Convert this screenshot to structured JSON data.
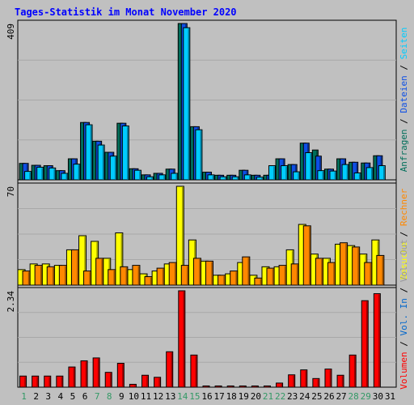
{
  "title": "Tages-Statistik im Monat November 2020",
  "colors": {
    "background": "#c0c0c0",
    "frame": "#000000",
    "title": "#0000ff",
    "label": "#000000",
    "weekend_label": "#339966",
    "anfragen": "#006e5a",
    "dateien": "#0d4fe6",
    "seiten": "#00ccff",
    "besuche": "#ffff00",
    "rechner": "#ff8800",
    "vol_in": "#0066cc",
    "vol_out": "#999999",
    "volumen": "#ff0000"
  },
  "legend_right": {
    "top": [
      "Anfragen",
      "Dateien",
      "Seiten"
    ],
    "middle": [
      "Besuche",
      "Rechner"
    ],
    "bottom": [
      "Volumen",
      "Vol. In",
      "Vol. Out"
    ],
    "separator": " / "
  },
  "chart_data": {
    "type": "bar",
    "title": "Tages-Statistik im Monat November 2020",
    "categories": [
      "1",
      "2",
      "3",
      "4",
      "5",
      "6",
      "7",
      "8",
      "9",
      "10",
      "11",
      "12",
      "13",
      "14",
      "15",
      "16",
      "17",
      "18",
      "19",
      "20",
      "21",
      "22",
      "23",
      "24",
      "25",
      "26",
      "27",
      "28",
      "29",
      "30",
      "31"
    ],
    "weekend_days": [
      "1",
      "7",
      "8",
      "14",
      "15",
      "21",
      "22",
      "28",
      "29"
    ],
    "panels": [
      {
        "name": "top",
        "ymax_label": "409",
        "ymax": 409,
        "series": [
          {
            "name": "Anfragen",
            "values": [
              43,
              38,
              37,
              24,
              55,
              150,
              101,
              72,
              148,
              29,
              13,
              17,
              28,
              409,
              139,
              20,
              12,
              12,
              25,
              12,
              12,
              55,
              40,
              96,
              78,
              28,
              55,
              46,
              44,
              63,
              0
            ]
          },
          {
            "name": "Dateien",
            "values": [
              43,
              38,
              37,
              24,
              55,
              150,
              101,
              72,
              148,
              29,
              13,
              17,
              28,
              409,
              139,
              20,
              12,
              12,
              25,
              12,
              12,
              55,
              40,
              96,
              62,
              28,
              55,
              46,
              44,
              63,
              0
            ]
          },
          {
            "name": "Seiten",
            "values": [
              22,
              33,
              31,
              17,
              41,
              144,
              91,
              62,
              141,
              25,
              8,
              13,
              17,
              398,
              131,
              13,
              8,
              8,
              13,
              7,
              37,
              37,
              21,
              71,
              24,
              23,
              40,
              18,
              32,
              37,
              0
            ]
          }
        ]
      },
      {
        "name": "middle",
        "ymax_label": "70",
        "ymax": 70,
        "series": [
          {
            "name": "Besuche",
            "values": [
              11,
              15,
              15,
              14,
              25,
              35,
              31,
              19,
              37,
              11,
              8,
              10,
              15,
              70,
              32,
              17,
              7,
              8,
              16,
              7,
              13,
              13,
              25,
              43,
              22,
              19,
              29,
              28,
              22,
              32,
              0
            ]
          },
          {
            "name": "Rechner",
            "values": [
              10,
              14,
              13,
              14,
              25,
              10,
              19,
              11,
              13,
              14,
              6,
              12,
              16,
              14,
              19,
              17,
              7,
              10,
              20,
              5,
              12,
              14,
              15,
              42,
              19,
              16,
              30,
              27,
              16,
              21,
              0
            ]
          }
        ]
      },
      {
        "name": "bottom",
        "ymax_label": "2.34",
        "ymax": 2.34,
        "series": [
          {
            "name": "Volumen",
            "values": [
              0.27,
              0.27,
              0.27,
              0.27,
              0.49,
              0.64,
              0.71,
              0.36,
              0.58,
              0.07,
              0.29,
              0.24,
              0.86,
              2.34,
              0.78,
              0.03,
              0.03,
              0.03,
              0.03,
              0.03,
              0.03,
              0.1,
              0.3,
              0.42,
              0.21,
              0.44,
              0.29,
              0.78,
              2.1,
              2.27,
              0
            ]
          }
        ]
      }
    ],
    "grid": true,
    "legend": "right (vertical)"
  }
}
